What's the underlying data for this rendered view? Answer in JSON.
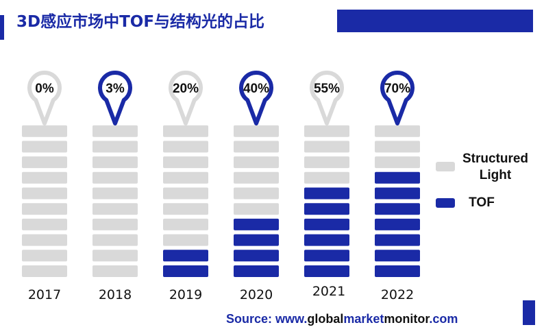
{
  "header": {
    "title": "3D感应市场中TOF与结构光的占比"
  },
  "colors": {
    "tof": "#1a2aa6",
    "structured_light": "#d9d9d9",
    "pin_gray": "#d9d9d9",
    "pin_blue": "#1a2aa6"
  },
  "legend": {
    "position": "right",
    "items": [
      {
        "label_line1": "Structured",
        "label_line2": "Light",
        "color": "#d9d9d9"
      },
      {
        "label_line1": "TOF",
        "label_line2": "",
        "color": "#1a2aa6"
      }
    ]
  },
  "chart_data": {
    "type": "bar",
    "title": "3D感应市场中TOF与结构光的占比",
    "categories": [
      "2017",
      "2018",
      "2019",
      "2020",
      "2021",
      "2022"
    ],
    "series": [
      {
        "name": "TOF",
        "values": [
          0,
          3,
          20,
          40,
          55,
          70
        ]
      },
      {
        "name": "Structured Light",
        "values": [
          100,
          97,
          80,
          60,
          45,
          30
        ]
      }
    ],
    "percent_labels": [
      "0%",
      "3%",
      "20%",
      "40%",
      "55%",
      "70%"
    ],
    "highlighted_pins": [
      false,
      true,
      false,
      true,
      false,
      true
    ],
    "ylim": [
      0,
      100
    ],
    "grid": false
  },
  "source": {
    "prefix": "Source: www.",
    "part_global": "global",
    "part_market": "market",
    "part_monitor": "monitor",
    "suffix": ".com"
  }
}
